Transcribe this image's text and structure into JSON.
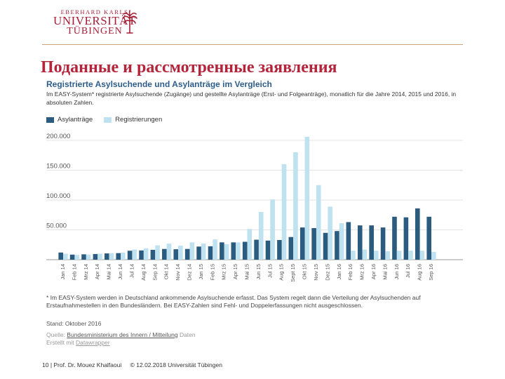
{
  "header": {
    "line1": "EBERHARD KARLS",
    "line2": "UNIVERSITÄT",
    "line3": "TÜBINGEN"
  },
  "slide_title": "Поданные и рассмотренные  заявления",
  "figure": {
    "subtitle": "Im EASY-System* registrierte Asylsuchende (Zugänge) und gestellte Asylanträge (Erst- und Folgeanträge), monatlich für die Jahre 2014, 2015 und 2016, in absoluten Zahlen.",
    "footnote": "* Im EASY-System werden in Deutschland ankommende Asylsuchende erfasst. Das System regelt dann die Verteilung der Asylsuchenden auf Erstaufnahmestellen in den Bundesländern. Bei EASY-Zahlen sind Fehl- und Doppelerfassungen nicht ausgeschlossen.",
    "stand": "Stand: Oktober 2016",
    "quelle_prefix": "Quelle: ",
    "quelle_link": "Bundesministerium des Innern / Mitteilung",
    "quelle_suffix": " Daten",
    "erstellt_prefix": "Erstellt mit ",
    "erstellt_link": "Datawrapper"
  },
  "footer": {
    "page": "10 | Prof. Dr. Mouez Khalfaoui",
    "copyright": "© 12.02.2018 Universität Tübingen"
  },
  "colors": {
    "brand": "#a51e36",
    "title": "#b4243a",
    "asyl": "#2b5b7e",
    "registrierung": "#bfe2f0"
  },
  "chart_data": {
    "type": "bar",
    "title": "Registrierte Asylsuchende und Asylanträge im Vergleich",
    "xlabel": "",
    "ylabel": "",
    "ylim": [
      0,
      200000
    ],
    "yticks": [
      0,
      50000,
      100000,
      150000,
      200000
    ],
    "ytick_labels": [
      "",
      "50.000",
      "100.000",
      "150.000",
      "200.000"
    ],
    "legend_position": "top-left",
    "grid": true,
    "categories": [
      "Jan 14",
      "Feb 14",
      "Mrz 14",
      "Apr 14",
      "Mai 14",
      "Jun 14",
      "Jul 14",
      "Aug 14",
      "Sep 14",
      "Okt 14",
      "Nov 14",
      "Dez 14",
      "Jan 15",
      "Feb 15",
      "Mrz 15",
      "Apr 15",
      "Mai 15",
      "Jun 15",
      "Jul 15",
      "Aug 15",
      "Sept 15",
      "Okt 15",
      "Nov 15",
      "Dez 15",
      "Jan 16",
      "Feb 16",
      "Mrz 16",
      "Apr 16",
      "Mai 16",
      "Jun 16",
      "Jul 16",
      "Aug 16",
      "Sep 16"
    ],
    "series": [
      {
        "name": "Asylanträge",
        "values": [
          12000,
          8500,
          9000,
          9500,
          10500,
          11000,
          15000,
          15500,
          16500,
          18000,
          17500,
          18000,
          22000,
          22500,
          29000,
          29000,
          30000,
          33500,
          32000,
          33000,
          38000,
          54000,
          53000,
          45000,
          48000,
          63000,
          57500,
          57500,
          54000,
          72000,
          71000,
          86000,
          72000
        ]
      },
      {
        "name": "Registrierungen",
        "values": [
          10000,
          8000,
          8500,
          10000,
          11000,
          12000,
          17000,
          19000,
          24000,
          27000,
          23500,
          29000,
          27000,
          34000,
          26000,
          29000,
          51500,
          80000,
          101000,
          160000,
          180000,
          206000,
          125000,
          89000,
          61000,
          15000,
          17000,
          15000,
          14000,
          15000,
          15000,
          15000,
          13000
        ]
      }
    ]
  }
}
